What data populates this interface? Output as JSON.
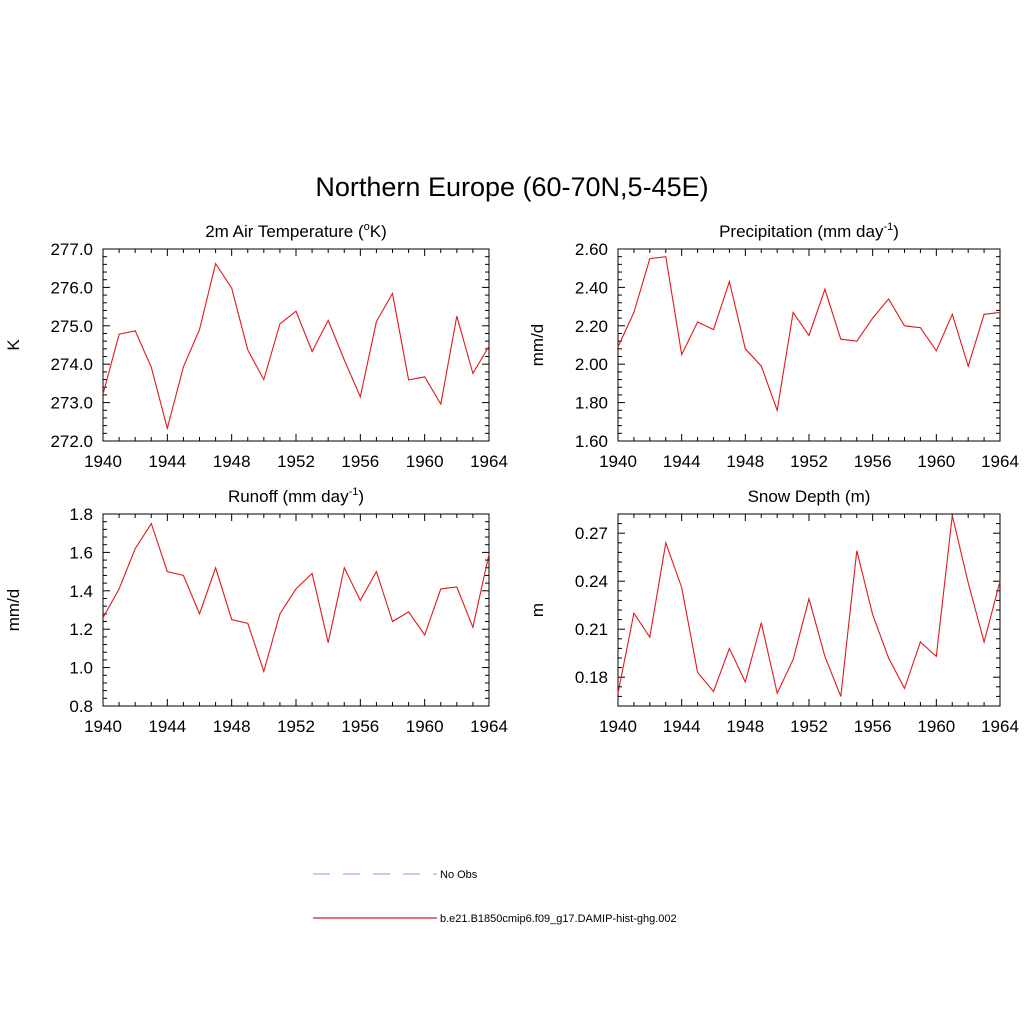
{
  "figure_title": "Northern Europe (60-70N,5-45E)",
  "legend": [
    {
      "label": "No Obs",
      "color": "#a9a9f0",
      "style": "dashed"
    },
    {
      "label": "b.e21.B1850cmip6.f09_g17.DAMIP-hist-ghg.002",
      "color": "#e0191b",
      "style": "solid"
    }
  ],
  "chart_data": [
    {
      "type": "line",
      "title_main": "2m Air Temperature (",
      "title_sup": "o",
      "title_end": "K)",
      "ylabel": "K",
      "xlim": [
        1940,
        1964
      ],
      "ylim": [
        272.0,
        277.0
      ],
      "xticks": [
        "1940",
        "1944",
        "1948",
        "1952",
        "1956",
        "1960",
        "1964"
      ],
      "yticks": [
        "272.0",
        "273.0",
        "274.0",
        "275.0",
        "276.0",
        "277.0"
      ],
      "x": [
        1940,
        1941,
        1942,
        1943,
        1944,
        1945,
        1946,
        1947,
        1948,
        1949,
        1950,
        1951,
        1952,
        1953,
        1954,
        1955,
        1956,
        1957,
        1958,
        1959,
        1960,
        1961,
        1962,
        1963,
        1964
      ],
      "series": [
        {
          "name": "b.e21.B1850cmip6.f09_g17.DAMIP-hist-ghg.002",
          "color": "#e0191b",
          "values": [
            273.22,
            274.78,
            274.87,
            273.92,
            272.33,
            273.93,
            274.9,
            276.62,
            275.98,
            274.37,
            273.6,
            275.05,
            275.38,
            274.33,
            275.14,
            274.11,
            273.15,
            275.11,
            275.84,
            273.59,
            273.67,
            272.96,
            275.25,
            273.76,
            274.47
          ]
        }
      ]
    },
    {
      "type": "line",
      "title_main": "Precipitation (mm day",
      "title_sup": "-1",
      "title_end": ")",
      "ylabel": "mm/d",
      "xlim": [
        1940,
        1964
      ],
      "ylim": [
        1.6,
        2.6
      ],
      "xticks": [
        "1940",
        "1944",
        "1948",
        "1952",
        "1956",
        "1960",
        "1964"
      ],
      "yticks": [
        "1.60",
        "1.80",
        "2.00",
        "2.20",
        "2.40",
        "2.60"
      ],
      "x": [
        1940,
        1941,
        1942,
        1943,
        1944,
        1945,
        1946,
        1947,
        1948,
        1949,
        1950,
        1951,
        1952,
        1953,
        1954,
        1955,
        1956,
        1957,
        1958,
        1959,
        1960,
        1961,
        1962,
        1963,
        1964
      ],
      "series": [
        {
          "name": "b.e21.B1850cmip6.f09_g17.DAMIP-hist-ghg.002",
          "color": "#e0191b",
          "values": [
            2.09,
            2.27,
            2.55,
            2.56,
            2.05,
            2.22,
            2.18,
            2.43,
            2.08,
            1.99,
            1.76,
            2.27,
            2.15,
            2.39,
            2.13,
            2.12,
            2.24,
            2.34,
            2.2,
            2.19,
            2.07,
            2.26,
            1.99,
            2.26,
            2.27
          ]
        }
      ]
    },
    {
      "type": "line",
      "title_main": "Runoff (mm day",
      "title_sup": "-1",
      "title_end": ")",
      "ylabel": "mm/d",
      "xlim": [
        1940,
        1964
      ],
      "ylim": [
        0.8,
        1.8
      ],
      "xticks": [
        "1940",
        "1944",
        "1948",
        "1952",
        "1956",
        "1960",
        "1964"
      ],
      "yticks": [
        "0.8",
        "1.0",
        "1.2",
        "1.4",
        "1.6",
        "1.8"
      ],
      "x": [
        1940,
        1941,
        1942,
        1943,
        1944,
        1945,
        1946,
        1947,
        1948,
        1949,
        1950,
        1951,
        1952,
        1953,
        1954,
        1955,
        1956,
        1957,
        1958,
        1959,
        1960,
        1961,
        1962,
        1963,
        1964
      ],
      "series": [
        {
          "name": "b.e21.B1850cmip6.f09_g17.DAMIP-hist-ghg.002",
          "color": "#e0191b",
          "values": [
            1.26,
            1.41,
            1.62,
            1.75,
            1.5,
            1.48,
            1.28,
            1.52,
            1.25,
            1.23,
            0.98,
            1.28,
            1.41,
            1.49,
            1.13,
            1.52,
            1.35,
            1.5,
            1.24,
            1.29,
            1.17,
            1.41,
            1.42,
            1.21,
            1.59
          ]
        }
      ]
    },
    {
      "type": "line",
      "title_main": "Snow Depth (m)",
      "title_sup": "",
      "title_end": "",
      "ylabel": "m",
      "xlim": [
        1940,
        1964
      ],
      "ylim": [
        0.162,
        0.282
      ],
      "xticks": [
        "1940",
        "1944",
        "1948",
        "1952",
        "1956",
        "1960",
        "1964"
      ],
      "yticks": [
        "0.18",
        "0.21",
        "0.24",
        "0.27"
      ],
      "ytick_values": [
        0.18,
        0.21,
        0.24,
        0.27
      ],
      "x": [
        1940,
        1941,
        1942,
        1943,
        1944,
        1945,
        1946,
        1947,
        1948,
        1949,
        1950,
        1951,
        1952,
        1953,
        1954,
        1955,
        1956,
        1957,
        1958,
        1959,
        1960,
        1961,
        1962,
        1963,
        1964
      ],
      "series": [
        {
          "name": "b.e21.B1850cmip6.f09_g17.DAMIP-hist-ghg.002",
          "color": "#e0191b",
          "values": [
            0.17,
            0.22,
            0.205,
            0.264,
            0.236,
            0.183,
            0.171,
            0.198,
            0.177,
            0.214,
            0.17,
            0.191,
            0.229,
            0.193,
            0.168,
            0.259,
            0.219,
            0.192,
            0.173,
            0.202,
            0.193,
            0.281,
            0.239,
            0.202,
            0.24
          ]
        }
      ]
    }
  ]
}
